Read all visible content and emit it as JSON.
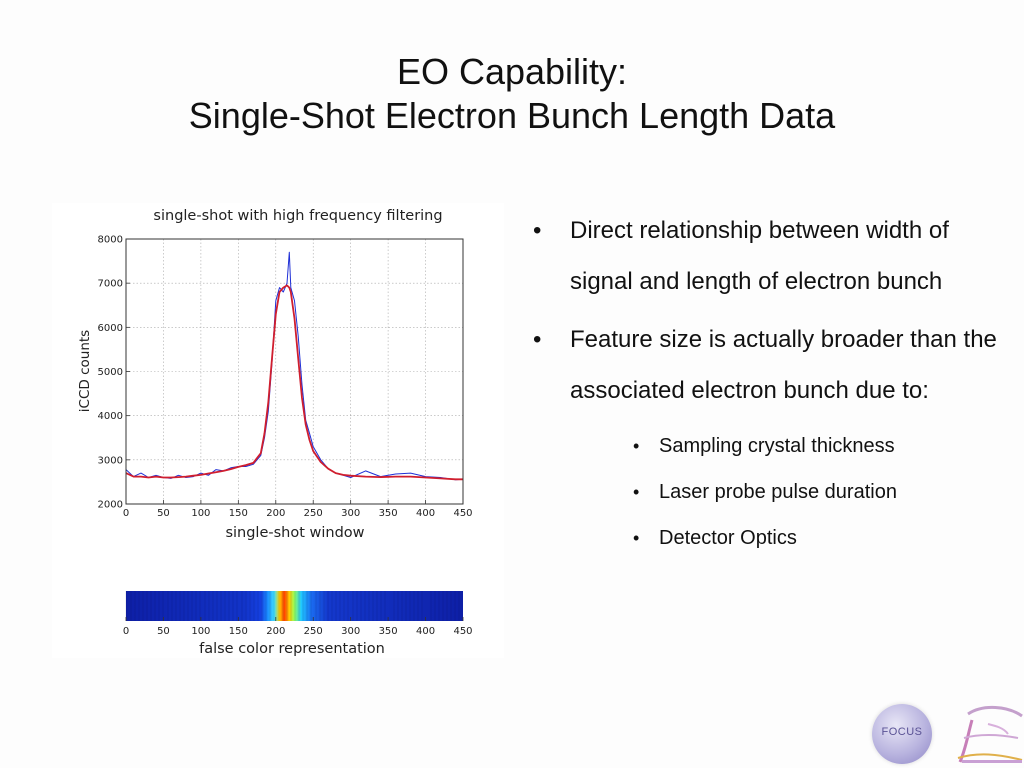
{
  "slide": {
    "title_line1": "EO Capability:",
    "title_line2": "Single-Shot Electron Bunch Length Data"
  },
  "bullets": [
    {
      "text": "Direct relationship between width of signal and length of electron bunch"
    },
    {
      "text": "Feature size is actually broader than the associated electron bunch due to:"
    }
  ],
  "sub_bullets": [
    {
      "text": "Sampling crystal thickness"
    },
    {
      "text": "Laser probe pulse duration"
    },
    {
      "text": "Detector Optics"
    }
  ],
  "logos": {
    "focus_text": "FOCUS",
    "focus_icon": "focus-logo-icon",
    "ftc_icon": "ftc-logo-icon"
  },
  "chart_data": [
    {
      "type": "line",
      "title": "single-shot with high frequency filtering",
      "xlabel": "single-shot window",
      "ylabel": "iCCD counts",
      "xlim": [
        0,
        450
      ],
      "ylim": [
        2000,
        8000
      ],
      "xticks": [
        0,
        50,
        100,
        150,
        200,
        250,
        300,
        350,
        400,
        450
      ],
      "yticks": [
        2000,
        3000,
        4000,
        5000,
        6000,
        7000,
        8000
      ],
      "grid": true,
      "series": [
        {
          "color": "#1f2fd6",
          "x": [
            0,
            10,
            20,
            30,
            40,
            50,
            60,
            70,
            80,
            90,
            100,
            110,
            120,
            130,
            140,
            150,
            160,
            170,
            180,
            185,
            190,
            195,
            200,
            205,
            210,
            215,
            218,
            220,
            225,
            230,
            235,
            240,
            245,
            250,
            260,
            270,
            280,
            290,
            300,
            320,
            340,
            360,
            380,
            400,
            420,
            440,
            450
          ],
          "y": [
            2780,
            2620,
            2700,
            2600,
            2650,
            2600,
            2580,
            2650,
            2600,
            2620,
            2700,
            2650,
            2780,
            2750,
            2820,
            2850,
            2850,
            2900,
            3100,
            3500,
            4100,
            5200,
            6600,
            6900,
            6800,
            7000,
            7700,
            6900,
            6600,
            5800,
            4700,
            3900,
            3600,
            3300,
            3000,
            2800,
            2700,
            2650,
            2600,
            2750,
            2620,
            2680,
            2700,
            2620,
            2600,
            2550,
            2560
          ]
        },
        {
          "color": "#d01e2e",
          "x": [
            0,
            10,
            20,
            30,
            40,
            50,
            60,
            70,
            80,
            90,
            100,
            110,
            120,
            130,
            140,
            150,
            160,
            170,
            180,
            185,
            190,
            195,
            200,
            205,
            210,
            215,
            218,
            220,
            225,
            230,
            235,
            240,
            245,
            250,
            260,
            270,
            280,
            290,
            300,
            320,
            340,
            360,
            380,
            400,
            420,
            440,
            450
          ],
          "y": [
            2700,
            2620,
            2620,
            2600,
            2620,
            2600,
            2600,
            2610,
            2620,
            2640,
            2660,
            2690,
            2720,
            2750,
            2790,
            2840,
            2880,
            2930,
            3150,
            3600,
            4300,
            5300,
            6300,
            6800,
            6900,
            6950,
            6900,
            6800,
            6200,
            5300,
            4400,
            3800,
            3450,
            3200,
            2950,
            2800,
            2700,
            2660,
            2640,
            2620,
            2610,
            2620,
            2620,
            2600,
            2580,
            2560,
            2560
          ]
        }
      ]
    },
    {
      "type": "heatmap",
      "xlabel": "false color representation",
      "xlim": [
        0,
        450
      ],
      "xticks": [
        0,
        50,
        100,
        150,
        200,
        250,
        300,
        350,
        400,
        450
      ]
    }
  ]
}
